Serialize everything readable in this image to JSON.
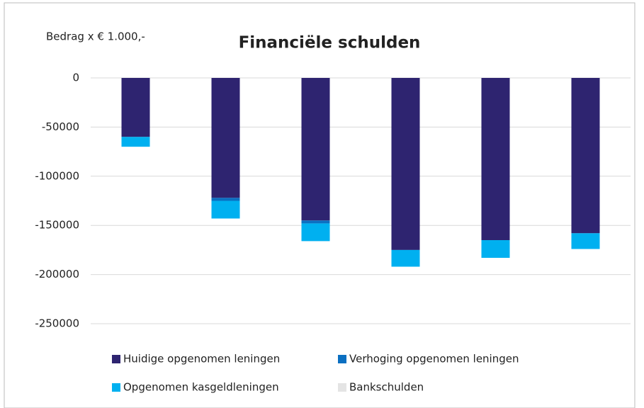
{
  "chart_data": {
    "type": "stacked_bar",
    "title": "Financiële schulden",
    "subtitle": "Bedrag x € 1.000,-",
    "categories": [
      null,
      null,
      null,
      null,
      null,
      null
    ],
    "series": [
      {
        "name": "Huidige opgenomen leningen",
        "color": "#2e2470",
        "values": [
          -60000,
          -122000,
          -145000,
          -175000,
          -165000,
          -158000
        ]
      },
      {
        "name": "Verhoging opgenomen leningen",
        "color": "#0b6fc1",
        "values": [
          0,
          -3000,
          -3000,
          0,
          0,
          0
        ]
      },
      {
        "name": "Opgenomen kasgeldleningen",
        "color": "#00b0f0",
        "values": [
          -10000,
          -18000,
          -18000,
          -17000,
          -18000,
          -16000
        ]
      },
      {
        "name": "Bankschulden",
        "color": "#e4e4e4",
        "values": [
          0,
          0,
          0,
          0,
          0,
          0
        ]
      }
    ],
    "ylim": [
      -250000,
      0
    ],
    "yticks": [
      0,
      -50000,
      -100000,
      -150000,
      -200000,
      -250000
    ],
    "grid": true,
    "legend": "bottom"
  }
}
